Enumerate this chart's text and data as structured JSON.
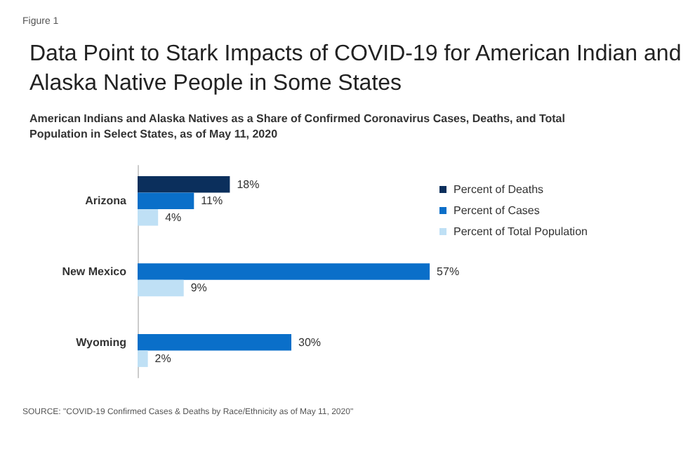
{
  "chart_data": {
    "type": "bar",
    "orientation": "horizontal",
    "title": "Data Point to Stark Impacts of COVID-19 for American Indian and Alaska Native People in Some States",
    "subtitle": "American Indians and Alaska Natives as a Share of Confirmed Coronavirus Cases, Deaths, and Total Population in Select States, as of May 11, 2020",
    "annotations": [
      "Figure 1",
      "SOURCE: \"COVID-19 Confirmed Cases & Deaths by Race/Ethnicity as of May 11, 2020\""
    ],
    "categories": [
      "Arizona",
      "New Mexico",
      "Wyoming"
    ],
    "series": [
      {
        "name": "Percent of Deaths",
        "color": "#0b2f5c",
        "values": [
          18,
          null,
          null
        ],
        "value_labels": [
          "18%",
          null,
          null
        ]
      },
      {
        "name": "Percent of Cases",
        "color": "#0a6fc9",
        "values": [
          11,
          57,
          30
        ],
        "value_labels": [
          "11%",
          "57%",
          "30%"
        ]
      },
      {
        "name": "Percent of Total Population",
        "color": "#bfe0f5",
        "values": [
          4,
          9,
          2
        ],
        "value_labels": [
          "4%",
          "9%",
          "2%"
        ]
      }
    ],
    "legend": "top right"
  }
}
